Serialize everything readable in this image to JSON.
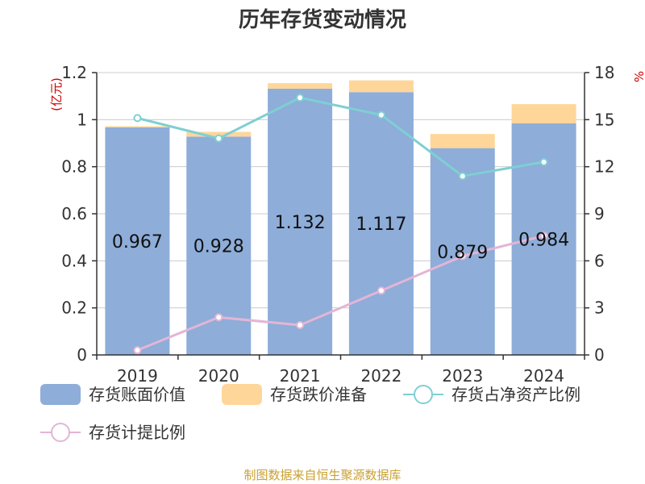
{
  "title": "历年存货变动情况",
  "source": "制图数据来自恒生聚源数据库",
  "chart_data": {
    "type": "bar",
    "stacked": true,
    "categories": [
      "2019",
      "2020",
      "2021",
      "2022",
      "2023",
      "2024"
    ],
    "left_axis": {
      "unit_label": "(亿元)",
      "range": [
        0,
        1.2
      ],
      "ticks": [
        "0",
        "0.2",
        "0.4",
        "0.6",
        "0.8",
        "1",
        "1.2"
      ]
    },
    "right_axis": {
      "unit_label": "%",
      "range": [
        0,
        18
      ],
      "ticks": [
        "0",
        "3",
        "6",
        "9",
        "12",
        "15",
        "18"
      ]
    },
    "grid": true,
    "legend_position": "bottom",
    "series": [
      {
        "name": "存货账面价值",
        "type": "bar",
        "axis": "left",
        "color": "#8eadd9",
        "values": [
          0.967,
          0.928,
          1.132,
          1.117,
          0.879,
          0.984
        ],
        "labels": [
          "0.967",
          "0.928",
          "1.132",
          "1.117",
          "0.879",
          "0.984"
        ]
      },
      {
        "name": "存货跌价准备",
        "type": "bar",
        "axis": "left",
        "color": "#ffd699",
        "values": [
          0.005,
          0.02,
          0.023,
          0.05,
          0.06,
          0.082
        ]
      },
      {
        "name": "存货占净资产比例",
        "type": "line",
        "axis": "right",
        "color": "#7ecfd3",
        "values": [
          15.1,
          13.8,
          16.4,
          15.3,
          11.4,
          12.3
        ]
      },
      {
        "name": "存货计提比例",
        "type": "line",
        "axis": "right",
        "color": "#e3b5d6",
        "values": [
          0.3,
          2.4,
          1.9,
          4.1,
          6.3,
          7.6
        ]
      }
    ]
  }
}
